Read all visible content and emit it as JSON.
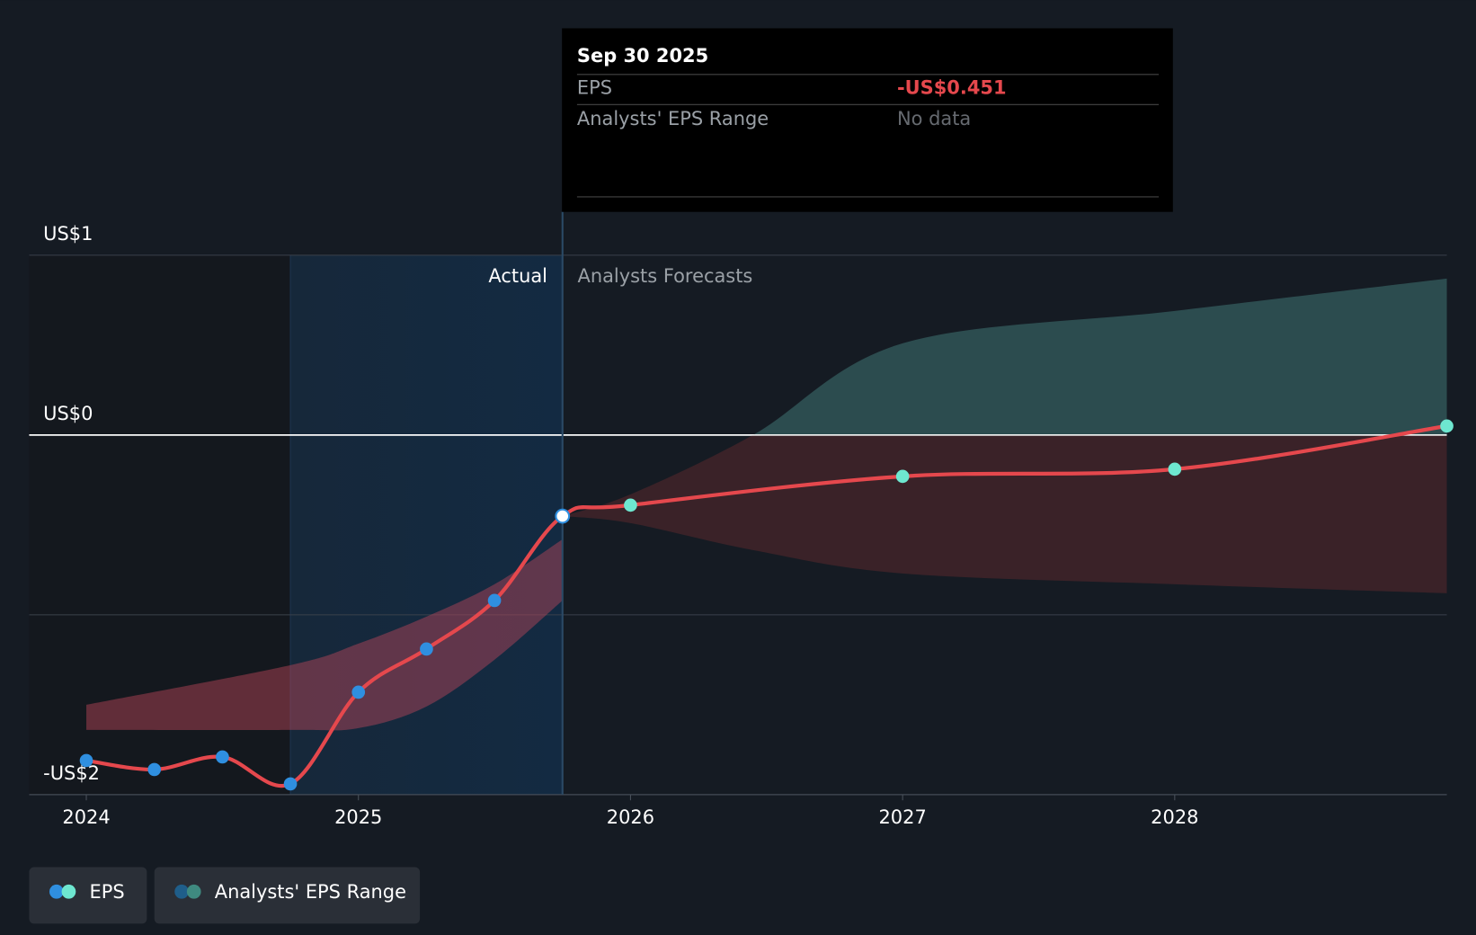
{
  "chart_data": {
    "type": "line",
    "xlim": [
      2023.79,
      2029.0
    ],
    "xticks": [
      2024,
      2025,
      2026,
      2027,
      2028
    ],
    "ylim": [
      -2,
      1
    ],
    "yticks": [
      {
        "value": 1,
        "label": "US$1"
      },
      {
        "value": 0,
        "label": "US$0"
      },
      {
        "value": -1,
        "label": null
      },
      {
        "value": -2,
        "label": "-US$2"
      }
    ],
    "forecast_start": 2025.75,
    "highlight_start": 2024.75,
    "actual_label": "Actual",
    "forecast_label": "Analysts Forecasts",
    "series": [
      {
        "name": "EPS",
        "color": "#e5484d",
        "x": [
          2024,
          2024.25,
          2024.5,
          2024.75,
          2025,
          2025.25,
          2025.5,
          2025.75,
          2026,
          2027,
          2028,
          2029
        ],
        "values": [
          -1.81,
          -1.86,
          -1.79,
          -1.94,
          -1.43,
          -1.19,
          -0.92,
          -0.451,
          -0.39,
          -0.23,
          -0.19,
          0.05
        ]
      }
    ],
    "range": {
      "name": "Analysts' EPS Range",
      "actual": {
        "x": [
          2024,
          2024.75,
          2025,
          2025.25,
          2025.5,
          2025.75
        ],
        "high": [
          -1.5,
          -1.28,
          -1.16,
          -1.01,
          -0.83,
          -0.58
        ],
        "low": [
          -1.64,
          -1.64,
          -1.63,
          -1.51,
          -1.25,
          -0.92
        ]
      },
      "forecast": {
        "x": [
          2025.75,
          2026,
          2026.45,
          2027,
          2028,
          2029
        ],
        "high": [
          -0.451,
          -0.33,
          0,
          0.51,
          0.69,
          0.87
        ],
        "low": [
          -0.451,
          -0.49,
          -0.64,
          -0.77,
          -0.83,
          -0.88
        ]
      }
    },
    "tooltip": {
      "title": "Sep 30 2025",
      "rows": [
        [
          "EPS",
          "-US$0.451"
        ],
        [
          "Analysts' EPS Range",
          "No data"
        ]
      ]
    }
  }
}
